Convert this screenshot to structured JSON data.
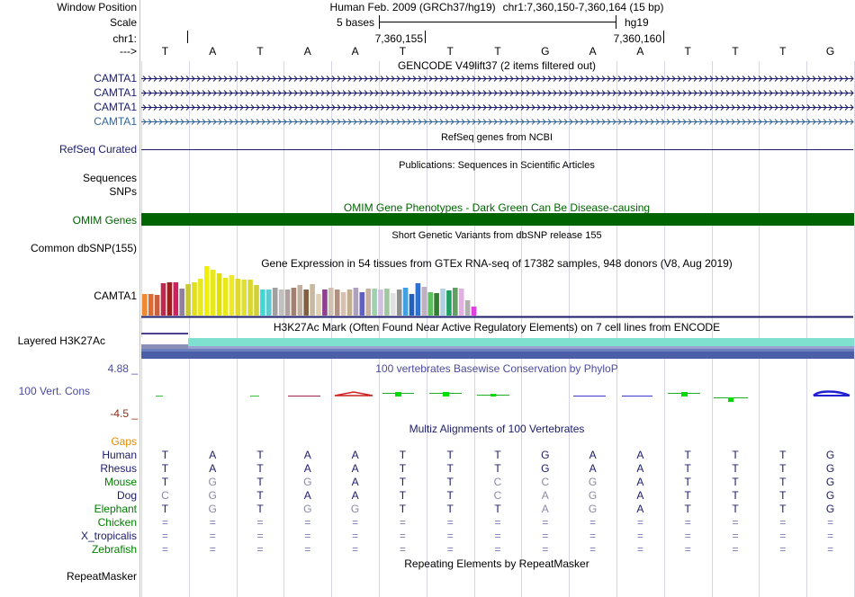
{
  "labels": {
    "window_position": "Window Position",
    "scale": "Scale",
    "chr": "chr1:",
    "strand": "--->",
    "camta1_1": "CAMTA1",
    "camta1_2": "CAMTA1",
    "camta1_3": "CAMTA1",
    "camta1_4": "CAMTA1",
    "refseq": "RefSeq Curated",
    "sequences": "Sequences",
    "snps": "SNPs",
    "omim": "OMIM Genes",
    "dbsnp": "Common dbSNP(155)",
    "gtex_gene": "CAMTA1",
    "h3k27ac": "Layered H3K27Ac",
    "phylop_max": "4.88 _",
    "cons": "100 Vert. Cons",
    "phylop_min": "-4.5 _",
    "gaps": "Gaps",
    "repeatmasker": "RepeatMasker"
  },
  "header": {
    "assembly": "Human Feb. 2009 (GRCh37/hg19)",
    "position": "chr1:7,360,150-7,360,164 (15 bp)",
    "scale_text": "5 bases",
    "db": "hg19",
    "coord1": "7,360,155",
    "coord2": "7,360,160"
  },
  "bases": [
    "T",
    "A",
    "T",
    "A",
    "A",
    "T",
    "T",
    "T",
    "G",
    "A",
    "A",
    "T",
    "T",
    "T",
    "G"
  ],
  "titles": {
    "gencode": "GENCODE V49lift37 (2 items filtered out)",
    "refseq": "RefSeq genes from NCBI",
    "pubs": "Publications: Sequences in Scientific Articles",
    "omim": "OMIM Gene Phenotypes - Dark Green Can Be Disease-causing",
    "dbsnp": "Short Genetic Variants from dbSNP release 155",
    "gtex": "Gene Expression in 54 tissues from GTEx RNA-seq of 17382 samples, 948 donors (V8, Aug 2019)",
    "h3k27ac": "H3K27Ac Mark (Often Found Near Active Regulatory Elements) on 7 cell lines from ENCODE",
    "phylop": "100 vertebrates Basewise Conservation by PhyloP",
    "multiz": "Multiz Alignments of 100 Vertebrates",
    "repeatmasker": "Repeating Elements by RepeatMasker"
  },
  "alignments": [
    {
      "species": "Human",
      "seq": "TATAATTTGAATTTG"
    },
    {
      "species": "Rhesus",
      "seq": "TATAATTTGAATTTG"
    },
    {
      "species": "Mouse",
      "seq": "TGTGATTCCGATTTG"
    },
    {
      "species": "Dog",
      "seq": "CGTAATTCAGATTTG"
    },
    {
      "species": "Elephant",
      "seq": "TGTGGTTTAGATTTG"
    },
    {
      "species": "Chicken",
      "seq": "==============="
    },
    {
      "species": "X_tropicalis",
      "seq": "==============="
    },
    {
      "species": "Zebrafish",
      "seq": "==============="
    }
  ],
  "colors": {
    "label_navy": "#1b1b6b",
    "label_camta_light": "#336699",
    "omim_green": "#006400",
    "gaps_orange": "#e08a00",
    "species_green": "#008000",
    "phylop_purple": "#4a4aa0",
    "phylop_min_red": "#8b2e12"
  },
  "gtex_bar_levels": [
    0.4,
    0.4,
    0.38,
    0.6,
    0.62,
    0.62,
    0.5,
    0.58,
    0.62,
    0.68,
    0.92,
    0.85,
    0.78,
    0.7,
    0.75,
    0.68,
    0.66,
    0.66,
    0.56,
    0.48,
    0.48,
    0.52,
    0.48,
    0.48,
    0.52,
    0.56,
    0.48,
    0.58,
    0.4,
    0.48,
    0.52,
    0.48,
    0.44,
    0.48,
    0.52,
    0.44,
    0.5,
    0.5,
    0.48,
    0.5,
    0.42,
    0.48,
    0.52,
    0.4,
    0.6,
    0.54,
    0.44,
    0.42,
    0.5,
    0.46,
    0.52,
    0.5,
    0.28,
    0.16
  ]
}
